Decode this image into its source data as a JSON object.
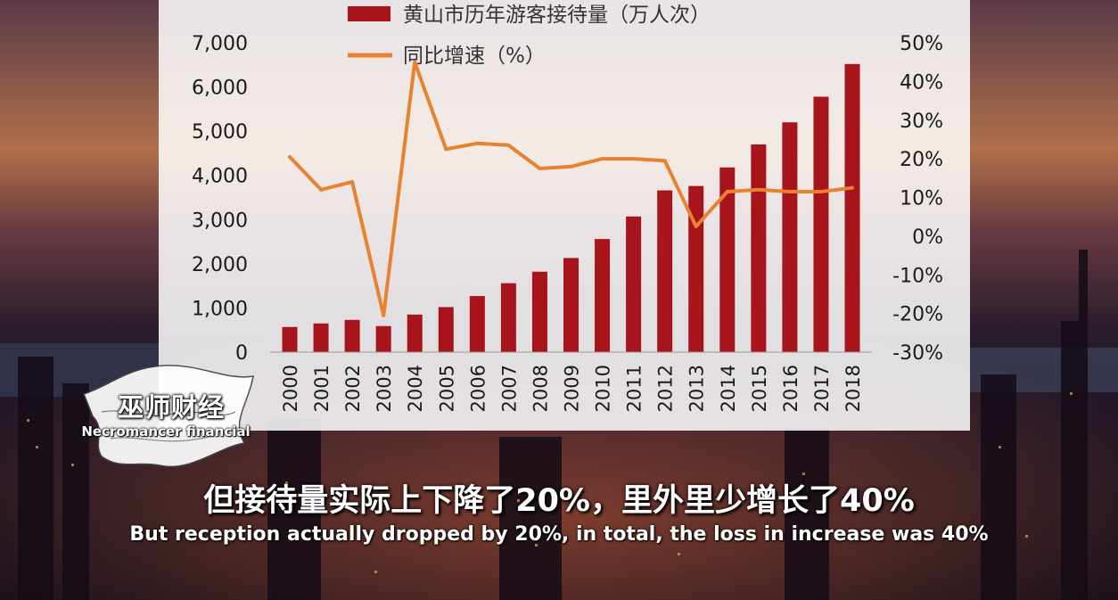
{
  "chart_data": {
    "type": "bar",
    "categories": [
      "2000",
      "2001",
      "2002",
      "2003",
      "2004",
      "2005",
      "2006",
      "2007",
      "2008",
      "2009",
      "2010",
      "2011",
      "2012",
      "2013",
      "2014",
      "2015",
      "2016",
      "2017",
      "2018"
    ],
    "series": [
      {
        "name": "黄山市历年游客接待量（万人次）",
        "type": "bar",
        "axis": "left",
        "color": "#a8141c",
        "values": [
          570,
          650,
          730,
          590,
          850,
          1020,
          1270,
          1560,
          1820,
          2130,
          2560,
          3070,
          3660,
          3760,
          4180,
          4700,
          5200,
          5780,
          6520
        ]
      },
      {
        "name": "同比增速（%）",
        "type": "line",
        "axis": "right",
        "color": "#e8822e",
        "values": [
          20.5,
          12,
          14,
          -20.5,
          45,
          22.5,
          24,
          23.5,
          17.5,
          18,
          20,
          20,
          19.5,
          2.5,
          11.5,
          12,
          11.5,
          11.5,
          12.5
        ]
      }
    ],
    "ylim_left": [
      0,
      7000
    ],
    "yticks_left": [
      0,
      1000,
      2000,
      3000,
      4000,
      5000,
      6000,
      7000
    ],
    "ytick_labels_left": [
      "0",
      "1,000",
      "2,000",
      "3,000",
      "4,000",
      "5,000",
      "6,000",
      "7,000"
    ],
    "ylim_right": [
      -30,
      50
    ],
    "yticks_right": [
      -30,
      -20,
      -10,
      0,
      10,
      20,
      30,
      40,
      50
    ],
    "ytick_labels_right": [
      "-30%",
      "-20%",
      "-10%",
      "0%",
      "10%",
      "20%",
      "30%",
      "40%",
      "50%"
    ],
    "legend_position": "top-center",
    "grid": false
  },
  "overlay": {
    "logo_cn": "巫师财经",
    "logo_en": "Necromancer financial",
    "subtitle_cn": "但接待量实际上下降了20%，里外里少增长了40%",
    "subtitle_en": "But reception actually dropped by 20%, in total, the loss in increase was 40%"
  }
}
